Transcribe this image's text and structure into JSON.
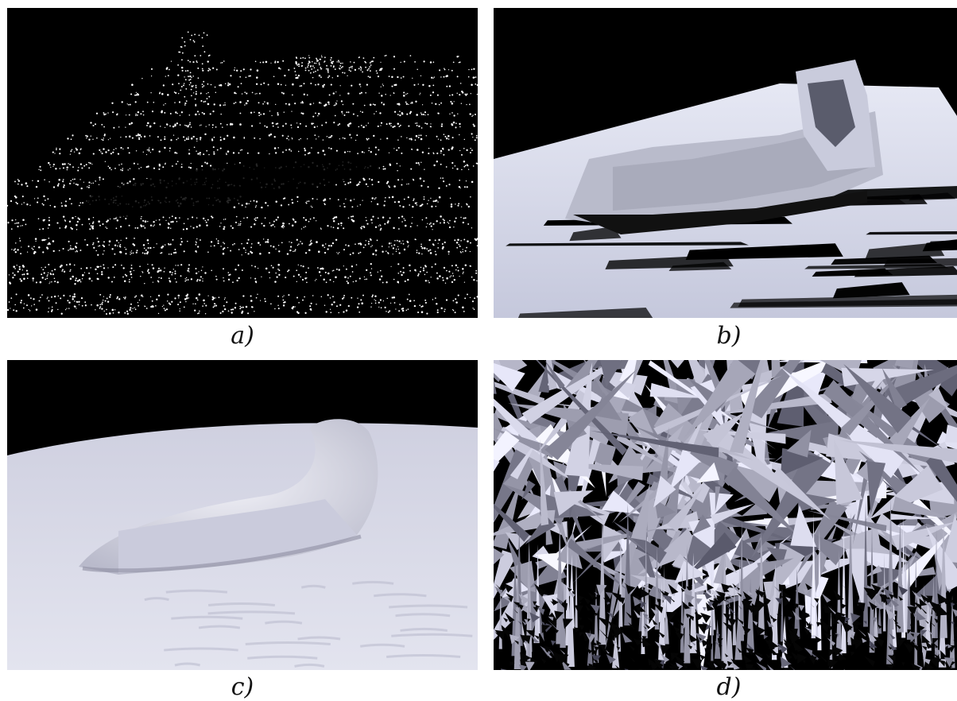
{
  "figure": {
    "panels": [
      {
        "id": "a",
        "caption": "a)",
        "content": "point-cloud"
      },
      {
        "id": "b",
        "caption": "b)",
        "content": "triangulated-mesh"
      },
      {
        "id": "c",
        "caption": "c)",
        "content": "smooth-surface"
      },
      {
        "id": "d",
        "caption": "d)",
        "content": "noisy-spiky-mesh"
      }
    ]
  },
  "colors": {
    "background": "#000000",
    "point": "#ffffff",
    "mesh_light": "#d7d9ea",
    "mesh_shadow": "#3a3c48",
    "surface": "#dcdde8"
  }
}
